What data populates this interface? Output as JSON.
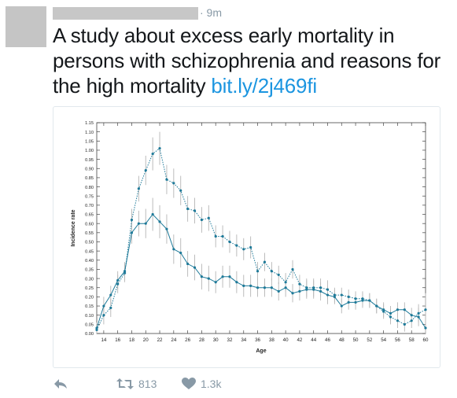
{
  "tweet": {
    "time": "· 9m",
    "text": "A study about excess early mortality in persons with schizophrenia and reasons for the high mortality",
    "link": "bit.ly/2j469fi"
  },
  "actions": {
    "retweet_count": "813",
    "like_count": "1.3k"
  },
  "colors": {
    "link": "#1b95e0",
    "series": "#1e7a99",
    "error_bars": "#b5b5b5",
    "action_icons": "#8899a6"
  },
  "chart_data": {
    "type": "line",
    "title": "",
    "xlabel": "Age",
    "ylabel": "Incidence rate",
    "xlim": [
      13,
      60
    ],
    "ylim": [
      0,
      1.15
    ],
    "x_ticks": [
      14,
      16,
      18,
      20,
      22,
      24,
      26,
      28,
      30,
      32,
      34,
      36,
      38,
      40,
      42,
      44,
      46,
      48,
      50,
      52,
      54,
      56,
      58,
      60
    ],
    "y_ticks": [
      "0.00",
      "0.05",
      "0.10",
      "0.15",
      "0.20",
      "0.25",
      "0.30",
      "0.35",
      "0.40",
      "0.45",
      "0.50",
      "0.55",
      "0.60",
      "0.65",
      "0.70",
      "0.75",
      "0.80",
      "0.85",
      "0.90",
      "0.95",
      "1.00",
      "1.05",
      "1.10",
      "1.15"
    ],
    "x": [
      13,
      14,
      15,
      16,
      17,
      18,
      19,
      20,
      21,
      22,
      23,
      24,
      25,
      26,
      27,
      28,
      29,
      30,
      31,
      32,
      33,
      34,
      35,
      36,
      37,
      38,
      39,
      40,
      41,
      42,
      43,
      44,
      45,
      46,
      47,
      48,
      49,
      50,
      51,
      52,
      53,
      54,
      55,
      56,
      57,
      58,
      59,
      60
    ],
    "series": [
      {
        "line_style": "dotted",
        "values": [
          0.02,
          0.1,
          0.14,
          0.27,
          0.33,
          0.62,
          0.79,
          0.89,
          0.98,
          1.01,
          0.84,
          0.82,
          0.78,
          0.68,
          0.67,
          0.62,
          0.63,
          0.53,
          0.53,
          0.5,
          0.48,
          0.46,
          0.47,
          0.34,
          0.39,
          0.34,
          0.32,
          0.28,
          0.35,
          0.27,
          0.25,
          0.25,
          0.25,
          0.24,
          0.21,
          0.21,
          0.2,
          0.19,
          0.19,
          0.18,
          0.15,
          0.12,
          0.09,
          0.07,
          0.05,
          0.07,
          0.11,
          0.13
        ]
      },
      {
        "line_style": "solid",
        "values": [
          0.03,
          0.15,
          0.21,
          0.29,
          0.34,
          0.55,
          0.6,
          0.6,
          0.65,
          0.61,
          0.57,
          0.46,
          0.44,
          0.38,
          0.36,
          0.31,
          0.3,
          0.28,
          0.31,
          0.31,
          0.28,
          0.26,
          0.26,
          0.25,
          0.25,
          0.25,
          0.23,
          0.25,
          0.22,
          0.23,
          0.24,
          0.24,
          0.23,
          0.21,
          0.2,
          0.15,
          0.17,
          0.17,
          0.18,
          0.18,
          0.15,
          0.13,
          0.11,
          0.13,
          0.13,
          0.1,
          0.09,
          0.03
        ]
      }
    ],
    "error_margin": [
      0.03,
      0.05,
      0.05,
      0.05,
      0.05,
      0.06,
      0.07,
      0.08,
      0.09,
      0.09,
      0.08,
      0.08,
      0.08,
      0.07,
      0.07,
      0.07,
      0.07,
      0.06,
      0.06,
      0.06,
      0.06,
      0.06,
      0.06,
      0.05,
      0.05,
      0.05,
      0.05,
      0.05,
      0.05,
      0.05,
      0.05,
      0.05,
      0.05,
      0.05,
      0.04,
      0.04,
      0.04,
      0.04,
      0.04,
      0.04,
      0.04,
      0.04,
      0.04,
      0.04,
      0.04,
      0.04,
      0.05,
      0.09
    ],
    "grid": false,
    "legend": "none"
  }
}
